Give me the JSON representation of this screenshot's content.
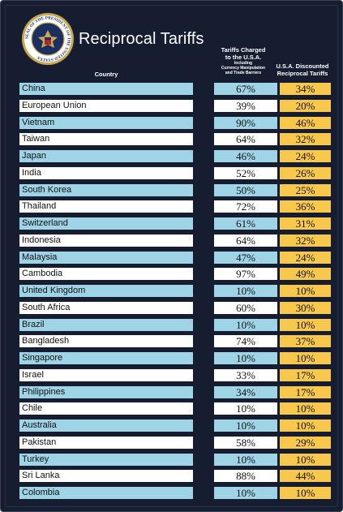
{
  "header": {
    "title": "Reciprocal Tariffs",
    "seal_text": "SEAL OF THE PRESIDENT OF THE UNITED STATES",
    "col_country": "Country",
    "col_charged_line1": "Tariffs Charged",
    "col_charged_line2": "to the U.S.A.",
    "col_charged_sub1": "Including",
    "col_charged_sub2": "Currency Manipulation",
    "col_charged_sub3": "and Trade Barriers",
    "col_discount_line1": "U.S.A. Discounted",
    "col_discount_line2": "Reciprocal Tariffs"
  },
  "colors": {
    "background": "#161d31",
    "row_blue": "#9fd4e7",
    "row_white": "#ffffff",
    "discount_yellow": "#f8c84d"
  },
  "rows": [
    {
      "country": "China",
      "charged": "67%",
      "discounted": "34%"
    },
    {
      "country": "European Union",
      "charged": "39%",
      "discounted": "20%"
    },
    {
      "country": "Vietnam",
      "charged": "90%",
      "discounted": "46%"
    },
    {
      "country": "Taiwan",
      "charged": "64%",
      "discounted": "32%"
    },
    {
      "country": "Japan",
      "charged": "46%",
      "discounted": "24%"
    },
    {
      "country": "India",
      "charged": "52%",
      "discounted": "26%"
    },
    {
      "country": "South Korea",
      "charged": "50%",
      "discounted": "25%"
    },
    {
      "country": "Thailand",
      "charged": "72%",
      "discounted": "36%"
    },
    {
      "country": "Switzerland",
      "charged": "61%",
      "discounted": "31%"
    },
    {
      "country": "Indonesia",
      "charged": "64%",
      "discounted": "32%"
    },
    {
      "country": "Malaysia",
      "charged": "47%",
      "discounted": "24%"
    },
    {
      "country": "Cambodia",
      "charged": "97%",
      "discounted": "49%"
    },
    {
      "country": "United Kingdom",
      "charged": "10%",
      "discounted": "10%"
    },
    {
      "country": "South Africa",
      "charged": "60%",
      "discounted": "30%"
    },
    {
      "country": "Brazil",
      "charged": "10%",
      "discounted": "10%"
    },
    {
      "country": "Bangladesh",
      "charged": "74%",
      "discounted": "37%"
    },
    {
      "country": "Singapore",
      "charged": "10%",
      "discounted": "10%"
    },
    {
      "country": "Israel",
      "charged": "33%",
      "discounted": "17%"
    },
    {
      "country": "Philippines",
      "charged": "34%",
      "discounted": "17%"
    },
    {
      "country": "Chile",
      "charged": "10%",
      "discounted": "10%"
    },
    {
      "country": "Australia",
      "charged": "10%",
      "discounted": "10%"
    },
    {
      "country": "Pakistan",
      "charged": "58%",
      "discounted": "29%"
    },
    {
      "country": "Turkey",
      "charged": "10%",
      "discounted": "10%"
    },
    {
      "country": "Sri Lanka",
      "charged": "88%",
      "discounted": "44%"
    },
    {
      "country": "Colombia",
      "charged": "10%",
      "discounted": "10%"
    }
  ]
}
